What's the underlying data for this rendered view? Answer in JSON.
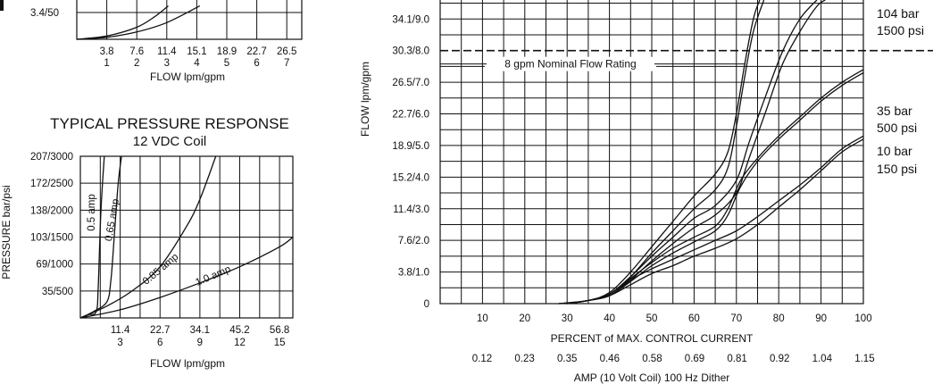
{
  "chart_data": [
    {
      "type": "line",
      "note": "Top-left chart, partially cropped at top of screenshot",
      "title": "",
      "xlabel": "FLOW lpm/gpm",
      "ylabel": "",
      "x_ticks_lpm": [
        "3.8",
        "7.6",
        "11.4",
        "15.1",
        "18.9",
        "22.7",
        "26.5"
      ],
      "x_ticks_gpm": [
        "1",
        "2",
        "3",
        "4",
        "5",
        "6",
        "7"
      ],
      "y_ticks_visible": [
        "3.4/50"
      ],
      "xlim": [
        0,
        7.5
      ],
      "series": [
        {
          "x": [
            0,
            1,
            2,
            2.6,
            3.05
          ],
          "y": [
            0,
            5,
            18,
            34,
            50
          ]
        },
        {
          "x": [
            0,
            1,
            2,
            3,
            4.1
          ],
          "y": [
            0,
            3,
            11,
            25,
            50
          ]
        }
      ]
    },
    {
      "type": "line",
      "title": "TYPICAL PRESSURE RESPONSE",
      "subtitle": "12 VDC Coil",
      "xlabel": "FLOW lpm/gpm",
      "ylabel": "PRESSURE bar/psi",
      "x_ticks_lpm": [
        "11.4",
        "22.7",
        "34.1",
        "45.2",
        "56.8"
      ],
      "x_ticks_gpm": [
        "3",
        "6",
        "9",
        "12",
        "15"
      ],
      "y_ticks": [
        "35/500",
        "69/1000",
        "103/1500",
        "138/2000",
        "172/2500",
        "207/3000"
      ],
      "xlim": [
        0,
        16
      ],
      "ylim": [
        0,
        3000
      ],
      "series": [
        {
          "name": "0.5 amp",
          "x": [
            0,
            0.6,
            1.2,
            1.35,
            1.55,
            1.8
          ],
          "y": [
            0,
            60,
            120,
            600,
            2000,
            3000
          ]
        },
        {
          "name": "0.65 amp",
          "x": [
            0,
            1,
            2,
            2.3,
            2.55,
            2.85,
            3.1
          ],
          "y": [
            0,
            120,
            300,
            700,
            1500,
            2500,
            3000
          ]
        },
        {
          "name": "0.85 amp",
          "x": [
            0,
            2,
            4,
            6,
            8,
            9,
            10.2
          ],
          "y": [
            0,
            220,
            520,
            950,
            1700,
            2200,
            3000
          ]
        },
        {
          "name": "1.0 amp",
          "x": [
            0,
            3,
            6,
            9,
            12,
            15,
            16
          ],
          "y": [
            0,
            150,
            380,
            650,
            950,
            1320,
            1500
          ]
        }
      ]
    },
    {
      "type": "line",
      "title": "",
      "xlabel": "PERCENT of MAX. CONTROL CURRENT",
      "xlabel2": "AMP (10 Volt Coil) 100 Hz Dither",
      "ylabel": "FLOW lpm/gpm",
      "x_ticks": [
        "10",
        "20",
        "30",
        "40",
        "50",
        "60",
        "70",
        "80",
        "90",
        "100"
      ],
      "x_ticks_amp": [
        "0.12",
        "0.23",
        "0.35",
        "0.46",
        "0.58",
        "0.69",
        "0.81",
        "0.92",
        "1.04",
        "1.15"
      ],
      "y_ticks": [
        "0",
        "3.8/1.0",
        "7.6/2.0",
        "11.4/3.0",
        "15.2/4.0",
        "18.9/5.0",
        "22.7/6.0",
        "26.5/7.0",
        "30.3/8.0",
        "34.1/9.0"
      ],
      "xlim": [
        0,
        100
      ],
      "ylim": [
        0,
        9.6
      ],
      "reference_line": {
        "y": 8.0,
        "label": "8 gpm Nominal Flow Rating"
      },
      "side_labels": [
        {
          "bar": "104 bar",
          "psi": "1500 psi"
        },
        {
          "bar": "35 bar",
          "psi": "500 psi"
        },
        {
          "bar": "10 bar",
          "psi": "150 psi"
        }
      ],
      "series": [
        {
          "x": [
            28,
            35,
            40,
            45,
            50,
            55,
            60,
            65,
            68,
            70,
            72,
            74,
            75.5
          ],
          "y": [
            0,
            0.1,
            0.35,
            1.0,
            1.8,
            2.6,
            3.4,
            4.1,
            4.8,
            6.0,
            7.6,
            9.0,
            9.6
          ]
        },
        {
          "x": [
            28,
            35,
            40,
            45,
            50,
            55,
            60,
            65,
            68,
            70,
            72,
            74,
            76.5
          ],
          "y": [
            0,
            0.1,
            0.3,
            0.85,
            1.6,
            2.3,
            3.0,
            3.6,
            4.3,
            5.6,
            7.2,
            8.6,
            9.6
          ]
        },
        {
          "x": [
            30,
            35,
            40,
            45,
            50,
            55,
            60,
            65,
            70,
            73,
            77,
            81,
            85,
            89
          ],
          "y": [
            0,
            0.1,
            0.3,
            0.85,
            1.5,
            2.1,
            2.7,
            3.1,
            3.9,
            5.1,
            6.6,
            8.0,
            9.0,
            9.6
          ]
        },
        {
          "x": [
            30,
            35,
            40,
            45,
            50,
            55,
            60,
            65,
            70,
            73,
            77,
            81,
            85,
            89,
            91
          ],
          "y": [
            0,
            0.1,
            0.25,
            0.75,
            1.35,
            1.9,
            2.4,
            2.8,
            3.5,
            4.6,
            6.1,
            7.6,
            8.6,
            9.4,
            9.6
          ]
        },
        {
          "x": [
            30,
            35,
            40,
            45,
            50,
            55,
            60,
            65,
            68,
            71,
            75,
            80,
            85,
            90,
            95,
            100
          ],
          "y": [
            0,
            0.1,
            0.3,
            0.8,
            1.3,
            1.75,
            2.1,
            2.45,
            3.0,
            3.9,
            4.6,
            5.3,
            5.9,
            6.5,
            7.0,
            7.4
          ]
        },
        {
          "x": [
            30,
            35,
            40,
            45,
            50,
            55,
            60,
            65,
            68,
            71,
            75,
            80,
            85,
            90,
            95,
            100
          ],
          "y": [
            0,
            0.1,
            0.25,
            0.7,
            1.2,
            1.6,
            1.95,
            2.3,
            2.8,
            3.7,
            4.5,
            5.2,
            5.8,
            6.4,
            6.9,
            7.3
          ]
        },
        {
          "x": [
            30,
            35,
            40,
            45,
            50,
            55,
            60,
            65,
            70,
            75,
            80,
            85,
            90,
            95,
            100
          ],
          "y": [
            0,
            0.1,
            0.3,
            0.75,
            1.1,
            1.4,
            1.7,
            2.0,
            2.3,
            2.75,
            3.25,
            3.75,
            4.3,
            4.9,
            5.3
          ]
        },
        {
          "x": [
            30,
            35,
            40,
            45,
            50,
            55,
            60,
            65,
            70,
            75,
            80,
            85,
            90,
            95,
            100
          ],
          "y": [
            0,
            0.1,
            0.25,
            0.6,
            0.95,
            1.2,
            1.5,
            1.75,
            2.05,
            2.5,
            3.05,
            3.6,
            4.2,
            4.8,
            5.2
          ]
        }
      ]
    }
  ]
}
